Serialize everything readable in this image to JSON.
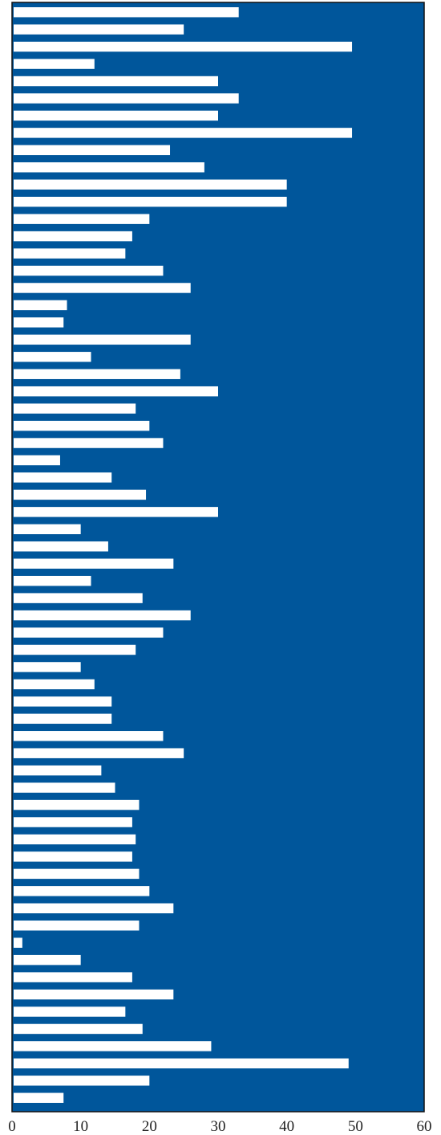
{
  "chart_data": {
    "type": "bar",
    "orientation": "horizontal",
    "title": "",
    "xlabel": "",
    "ylabel": "",
    "xlim": [
      0,
      60
    ],
    "x_ticks": [
      "0",
      "10",
      "20",
      "30",
      "40",
      "50",
      "60"
    ],
    "grid": false,
    "legend": "none",
    "values": [
      33,
      25,
      49.5,
      12,
      30,
      33,
      30,
      49.5,
      23,
      28,
      40,
      40,
      20,
      17.5,
      16.5,
      22,
      26,
      8,
      7.5,
      26,
      11.5,
      24.5,
      30,
      18,
      20,
      22,
      7,
      14.5,
      19.5,
      30,
      10,
      14,
      23.5,
      11.5,
      19,
      26,
      22,
      18,
      10,
      12,
      14.5,
      14.5,
      22,
      25,
      13,
      15,
      18.5,
      17.5,
      18,
      17.5,
      18.5,
      20,
      23.5,
      18.5,
      1.5,
      10,
      17.5,
      23.5,
      16.5,
      19,
      29,
      49,
      20,
      7.5
    ]
  },
  "colors": {
    "plot_background": "#00569b",
    "bar": "#ffffff",
    "frame": "#111111",
    "tick_text": "#222222"
  }
}
